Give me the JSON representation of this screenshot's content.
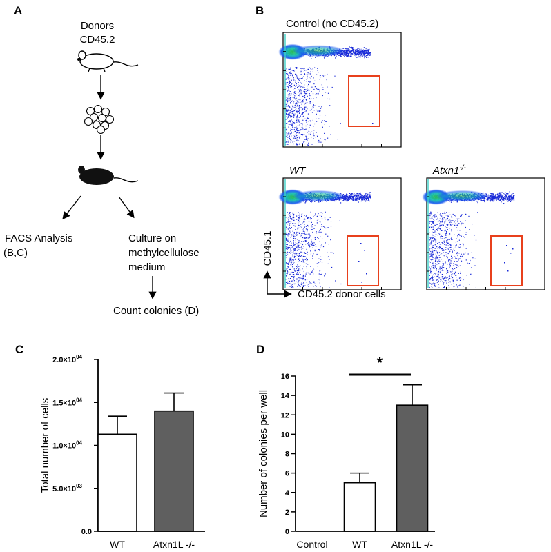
{
  "panel_labels": {
    "a": "A",
    "b": "B",
    "c": "C",
    "d": "D"
  },
  "schematic": {
    "donor_line1": "Donors",
    "donor_line2": "CD45.2",
    "facs_line1": "FACS Analysis",
    "facs_line2": "(B,C)",
    "culture_line1": "Culture on",
    "culture_line2": "methylcellulose",
    "culture_line3": "medium",
    "count": "Count colonies (D)"
  },
  "flow": {
    "control_title": "Control (no CD45.2)",
    "wt_title": "WT",
    "ko_title_base": "Atxn1",
    "ko_title_sup": "-/-",
    "y_axis_label": "CD45.1",
    "x_axis_label": "CD45.2 donor cells",
    "gate_color": "#e8401c"
  },
  "chart_data": [
    {
      "type": "bar",
      "panel": "C",
      "categories": [
        "WT",
        "Atxn1L -/-"
      ],
      "values": [
        11300,
        14000
      ],
      "errors": [
        2100,
        2100
      ],
      "colors": [
        "#ffffff",
        "#5f5f5f"
      ],
      "ylabel": "Total number of cells",
      "ylim": [
        0,
        20000
      ],
      "yticks": [
        0,
        5000,
        10000,
        15000,
        20000
      ],
      "ytick_labels": [
        {
          "base": "0.0",
          "exp": ""
        },
        {
          "base": "5.0×10",
          "exp": "03"
        },
        {
          "base": "1.0×10",
          "exp": "04"
        },
        {
          "base": "1.5×10",
          "exp": "04"
        },
        {
          "base": "2.0×10",
          "exp": "04"
        }
      ]
    },
    {
      "type": "bar",
      "panel": "D",
      "categories": [
        "Control",
        "WT",
        "Atxn1L -/-"
      ],
      "values": [
        0,
        5,
        13
      ],
      "errors": [
        0,
        1,
        2.1
      ],
      "colors": [
        "#ffffff",
        "#ffffff",
        "#5f5f5f"
      ],
      "ylabel": "Number of colonies per well",
      "ylim": [
        0,
        16
      ],
      "yticks": [
        0,
        2,
        4,
        6,
        8,
        10,
        12,
        14,
        16
      ],
      "significance": "*"
    }
  ]
}
